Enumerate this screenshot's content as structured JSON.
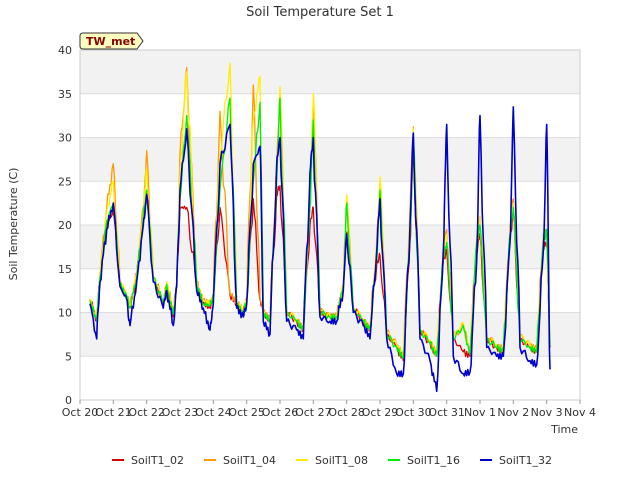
{
  "chart_data": {
    "type": "line",
    "title": "Soil Temperature Set 1",
    "xlabel": "Time",
    "ylabel": "Soil Temperature (C)",
    "ylim": [
      0,
      40
    ],
    "xlim": [
      "Oct 20",
      "Nov 4"
    ],
    "yticks": [
      0,
      5,
      10,
      15,
      20,
      25,
      30,
      35,
      40
    ],
    "xtick_labels": [
      "Oct 20",
      "Oct 21",
      "Oct 22",
      "Oct 23",
      "Oct 24",
      "Oct 25",
      "Oct 26",
      "Oct 27",
      "Oct 28",
      "Oct 29",
      "Oct 30",
      "Oct 31",
      "Nov 1",
      "Nov 2",
      "Nov 3",
      "Nov 4"
    ],
    "grid": "horizontal alternating bands",
    "legend_position": "bottom",
    "annotation": "TW_met",
    "series": [
      {
        "name": "SoilT1_02",
        "color": "#dd0000",
        "x": [
          0.3,
          0.5,
          0.6,
          0.8,
          1.0,
          1.2,
          1.4,
          1.5,
          1.7,
          1.9,
          2.0,
          2.2,
          2.5,
          2.6,
          2.8,
          2.9,
          3.0,
          3.2,
          3.5,
          3.7,
          3.9,
          4.0,
          4.2,
          4.5,
          4.7,
          4.9,
          5.0,
          5.2,
          5.4,
          5.5,
          5.7,
          5.9,
          6.0,
          6.2,
          6.5,
          6.7,
          6.9,
          7.0,
          7.2,
          7.5,
          7.7,
          7.9,
          8.0,
          8.2,
          8.5,
          8.7,
          8.9,
          9.0,
          9.2,
          9.5,
          9.7,
          9.9,
          10.0,
          10.2,
          10.5,
          10.7,
          10.9,
          11.0,
          11.2,
          11.5,
          11.7,
          11.9,
          12.0,
          12.2,
          12.5,
          12.7,
          12.9,
          13.0,
          13.2,
          13.5,
          13.7,
          13.9,
          14.0,
          14.1
        ],
        "values": [
          11.5,
          9.2,
          14,
          20,
          21.5,
          13,
          12,
          10.5,
          14,
          20.5,
          23.5,
          14,
          11,
          13,
          9.5,
          13,
          22,
          22,
          13,
          11,
          10.5,
          11.8,
          22,
          12,
          11,
          10,
          11.5,
          23,
          11.5,
          10,
          9,
          23.5,
          24.5,
          10,
          9,
          8,
          20,
          22,
          10,
          9.5,
          9.5,
          13,
          19.2,
          10.5,
          9,
          8,
          15.5,
          16.5,
          7.5,
          6,
          4.5,
          18,
          29,
          8,
          6.5,
          5,
          16,
          17,
          7,
          5.5,
          5,
          17,
          19,
          7,
          6,
          5.5,
          18.5,
          21.5,
          7,
          6,
          5.5,
          17.5,
          18,
          6
        ]
      },
      {
        "name": "SoilT1_04",
        "color": "#ff9900",
        "x": [
          0.3,
          0.5,
          0.6,
          0.8,
          1.0,
          1.2,
          1.4,
          1.5,
          1.7,
          1.9,
          2.0,
          2.2,
          2.5,
          2.6,
          2.8,
          2.9,
          3.0,
          3.2,
          3.5,
          3.7,
          3.9,
          4.0,
          4.2,
          4.5,
          4.7,
          4.9,
          5.0,
          5.2,
          5.4,
          5.5,
          5.7,
          5.9,
          6.0,
          6.2,
          6.5,
          6.7,
          6.9,
          7.0,
          7.2,
          7.5,
          7.7,
          7.9,
          8.0,
          8.2,
          8.5,
          8.7,
          8.9,
          9.0,
          9.2,
          9.5,
          9.7,
          9.9,
          10.0,
          10.2,
          10.5,
          10.7,
          10.9,
          11.0,
          11.2,
          11.5,
          11.7,
          11.9,
          12.0,
          12.2,
          12.5,
          12.7,
          12.9,
          13.0,
          13.2,
          13.5,
          13.7,
          13.9,
          14.0,
          14.1
        ],
        "values": [
          11.5,
          9.3,
          14.5,
          22,
          27,
          13.5,
          12,
          10.8,
          14.5,
          22,
          28.5,
          14.2,
          11.2,
          13.5,
          10,
          13.5,
          28,
          38,
          13.5,
          11.3,
          11,
          12,
          33,
          12.2,
          11.2,
          10.3,
          11.5,
          36,
          11.8,
          10.2,
          9.2,
          27,
          35,
          10.2,
          9.2,
          8.2,
          24,
          34.5,
          10.2,
          9.6,
          9.6,
          13.2,
          23.2,
          10.6,
          9.2,
          8.2,
          18,
          24.5,
          7.8,
          6.3,
          5,
          22,
          31.2,
          8.2,
          6.8,
          5.2,
          17,
          19.5,
          7.2,
          8.5,
          5.3,
          18.5,
          21,
          7.3,
          6.3,
          5.8,
          20,
          23,
          7.3,
          6.3,
          5.8,
          19,
          19.5,
          6.5
        ]
      },
      {
        "name": "SoilT1_08",
        "color": "#ffee00",
        "x": [
          0.3,
          0.5,
          0.6,
          0.8,
          1.0,
          1.2,
          1.4,
          1.5,
          1.7,
          1.9,
          2.0,
          2.2,
          2.5,
          2.6,
          2.8,
          2.9,
          3.0,
          3.2,
          3.5,
          3.7,
          3.9,
          4.0,
          4.2,
          4.5,
          4.7,
          4.9,
          5.0,
          5.2,
          5.4,
          5.5,
          5.7,
          5.9,
          6.0,
          6.2,
          6.5,
          6.7,
          6.9,
          7.0,
          7.2,
          7.5,
          7.7,
          7.9,
          8.0,
          8.2,
          8.5,
          8.7,
          8.9,
          9.0,
          9.2,
          9.5,
          9.7,
          9.9,
          10.0,
          10.2,
          10.5,
          10.7,
          10.9,
          11.0,
          11.2,
          11.5,
          11.7,
          11.9,
          12.0,
          12.2,
          12.5,
          12.7,
          12.9,
          13.0,
          13.2,
          13.5,
          13.7,
          13.9,
          14.0,
          14.1
        ],
        "values": [
          11.5,
          9.3,
          14.5,
          21.5,
          25,
          13.5,
          12,
          10.8,
          14.5,
          21.5,
          26.5,
          14.2,
          11.2,
          13.5,
          10,
          13.5,
          26,
          37.5,
          13.5,
          11.3,
          11,
          12,
          28,
          38.5,
          11.2,
          10.3,
          11.5,
          32,
          37,
          10.2,
          9.2,
          26,
          35.8,
          10.2,
          9.2,
          8.2,
          23,
          35,
          10.2,
          9.6,
          9.6,
          13.2,
          23.5,
          10.6,
          9.2,
          8.2,
          17.5,
          25.5,
          7.8,
          6.3,
          5,
          21,
          31,
          8.2,
          6.8,
          5.2,
          17.5,
          19,
          7.2,
          8.8,
          5.3,
          18.5,
          21,
          7.3,
          6.3,
          5.8,
          20,
          22.5,
          7.3,
          6.3,
          5.8,
          18.5,
          19.5,
          6.5
        ]
      },
      {
        "name": "SoilT1_16",
        "color": "#00ee00",
        "x": [
          0.3,
          0.5,
          0.6,
          0.8,
          1.0,
          1.2,
          1.4,
          1.5,
          1.7,
          1.9,
          2.0,
          2.2,
          2.5,
          2.6,
          2.8,
          2.9,
          3.0,
          3.2,
          3.5,
          3.7,
          3.9,
          4.0,
          4.2,
          4.5,
          4.7,
          4.9,
          5.0,
          5.2,
          5.4,
          5.5,
          5.7,
          5.9,
          6.0,
          6.2,
          6.5,
          6.7,
          6.9,
          7.0,
          7.2,
          7.5,
          7.7,
          7.9,
          8.0,
          8.2,
          8.5,
          8.7,
          8.9,
          9.0,
          9.2,
          9.5,
          9.7,
          9.9,
          10.0,
          10.2,
          10.5,
          10.7,
          10.9,
          11.0,
          11.2,
          11.5,
          11.7,
          11.9,
          12.0,
          12.2,
          12.5,
          12.7,
          12.9,
          13.0,
          13.2,
          13.5,
          13.7,
          13.9,
          14.0,
          14.1
        ],
        "values": [
          11.3,
          9,
          14,
          20.5,
          22.5,
          13.2,
          11.8,
          10.5,
          14,
          21,
          24,
          14,
          11,
          13.2,
          9.8,
          13.2,
          23,
          32.5,
          13.2,
          11,
          10.8,
          11.8,
          24,
          34.5,
          11,
          10,
          11.2,
          25,
          34,
          10,
          9,
          25,
          34.5,
          10,
          9,
          8,
          22,
          32,
          10,
          9.5,
          9.5,
          13,
          22.5,
          10.4,
          9,
          8,
          16,
          24,
          7.5,
          6,
          4.8,
          18.5,
          30.5,
          8,
          6.5,
          5,
          16.5,
          18,
          7,
          8.5,
          5.2,
          18,
          20,
          7,
          6,
          5.6,
          19,
          22,
          7,
          6,
          5.6,
          18,
          19.5,
          6.2
        ]
      },
      {
        "name": "SoilT1_32",
        "color": "#0000cc",
        "x": [
          0.3,
          0.5,
          0.6,
          0.8,
          1.0,
          1.2,
          1.4,
          1.5,
          1.7,
          1.9,
          2.0,
          2.2,
          2.5,
          2.6,
          2.8,
          2.9,
          3.0,
          3.2,
          3.5,
          3.7,
          3.9,
          4.0,
          4.2,
          4.5,
          4.7,
          4.9,
          5.0,
          5.2,
          5.4,
          5.5,
          5.7,
          5.9,
          6.0,
          6.2,
          6.5,
          6.7,
          6.9,
          7.0,
          7.2,
          7.5,
          7.7,
          7.9,
          8.0,
          8.2,
          8.5,
          8.7,
          8.9,
          9.0,
          9.2,
          9.5,
          9.7,
          9.9,
          10.0,
          10.2,
          10.5,
          10.7,
          10.9,
          11.0,
          11.2,
          11.5,
          11.7,
          11.9,
          12.0,
          12.2,
          12.5,
          12.7,
          12.9,
          13.0,
          13.2,
          13.5,
          13.7,
          13.9,
          14.0,
          14.1
        ],
        "values": [
          11,
          7,
          13.5,
          19.5,
          22.5,
          13,
          11.5,
          8.5,
          13.5,
          20,
          23.5,
          13.5,
          10.5,
          12.5,
          8.5,
          13,
          24,
          31,
          12.5,
          10.5,
          8,
          11,
          27,
          31.5,
          10.5,
          9.5,
          11,
          27,
          29,
          9,
          7.5,
          27,
          30,
          9,
          8,
          7,
          26,
          30,
          9.5,
          9,
          9,
          12.5,
          19,
          10,
          8.5,
          7,
          17,
          23,
          7,
          3,
          3,
          20,
          30.5,
          7,
          4.5,
          1,
          17,
          31.5,
          5,
          3,
          3.2,
          16,
          32.5,
          6,
          5,
          5,
          18,
          33.5,
          6,
          4.5,
          4,
          17,
          31.5,
          3.5
        ]
      }
    ]
  }
}
